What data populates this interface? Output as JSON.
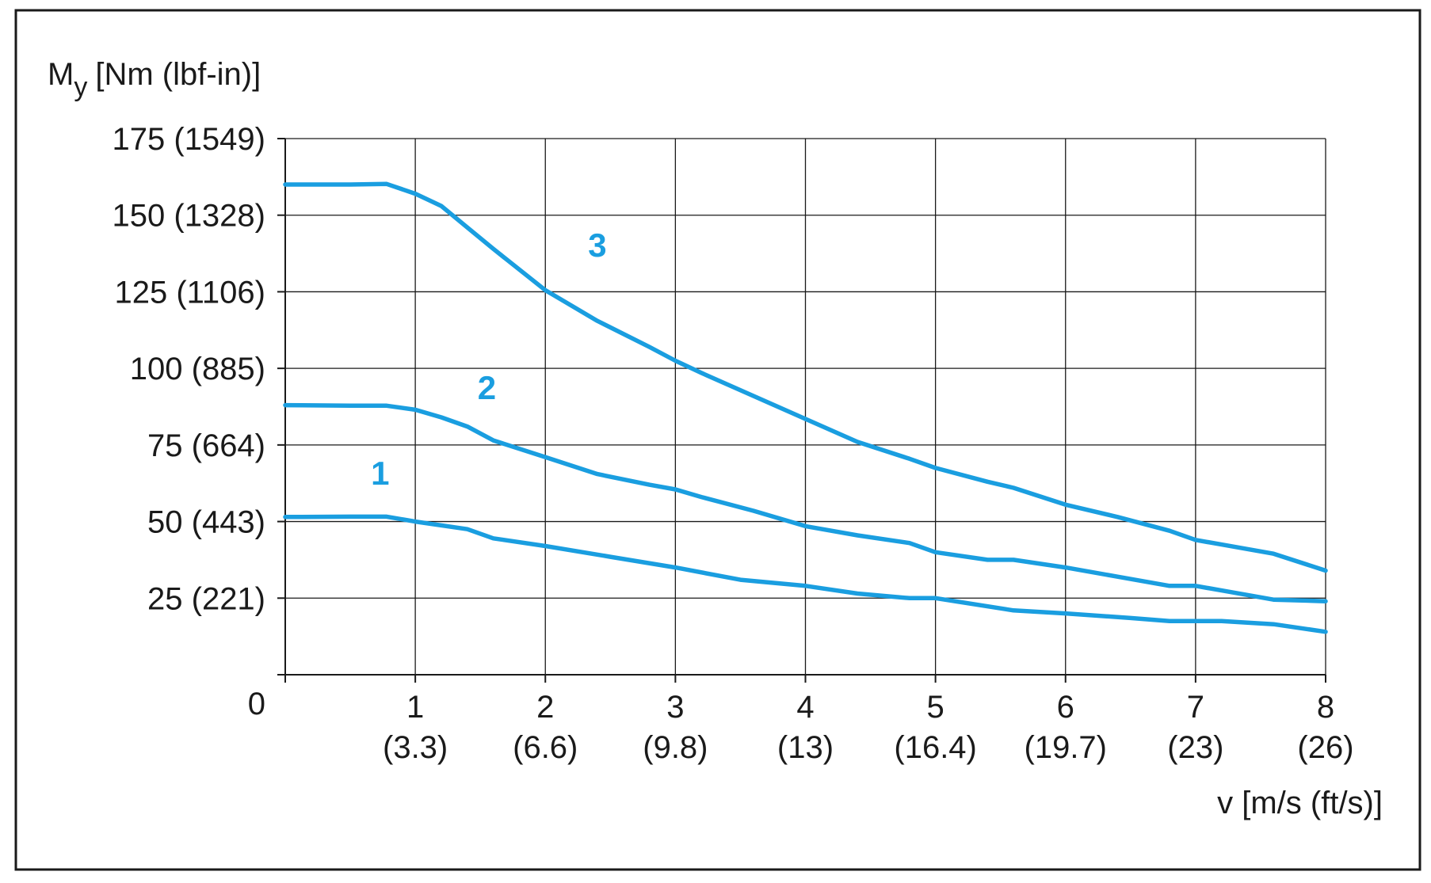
{
  "colors": {
    "series": "#1A9EE0",
    "frame": "#1A1A1A",
    "grid": "#1A1A1A"
  },
  "chart_data": {
    "type": "line",
    "title": "",
    "ylabel_main": "M",
    "ylabel_sub": "y",
    "ylabel_units": "[Nm (lbf-in)]",
    "xlabel": "v [m/s (ft/s)]",
    "xlim": [
      0,
      8
    ],
    "ylim": [
      0,
      175
    ],
    "grid": true,
    "origin_label": "0",
    "yticks": [
      {
        "value": 25,
        "label": "25 (221)"
      },
      {
        "value": 50,
        "label": "50 (443)"
      },
      {
        "value": 75,
        "label": "75 (664)"
      },
      {
        "value": 100,
        "label": "100 (885)"
      },
      {
        "value": 125,
        "label": "125 (1106)"
      },
      {
        "value": 150,
        "label": "150 (1328)"
      },
      {
        "value": 175,
        "label": "175 (1549)"
      }
    ],
    "xticks": [
      {
        "value": 1,
        "label": "1",
        "sublabel": "(3.3)"
      },
      {
        "value": 2,
        "label": "2",
        "sublabel": "(6.6)"
      },
      {
        "value": 3,
        "label": "3",
        "sublabel": "(9.8)"
      },
      {
        "value": 4,
        "label": "4",
        "sublabel": "(13)"
      },
      {
        "value": 5,
        "label": "5",
        "sublabel": "(16.4)"
      },
      {
        "value": 6,
        "label": "6",
        "sublabel": "(19.7)"
      },
      {
        "value": 7,
        "label": "7",
        "sublabel": "(23)"
      },
      {
        "value": 8,
        "label": "8",
        "sublabel": "(26)"
      }
    ],
    "series": [
      {
        "name": "1",
        "label_at": {
          "x": 0.73,
          "y": 62
        },
        "x": [
          0,
          0.5,
          0.78,
          1.0,
          1.4,
          1.6,
          2.0,
          2.5,
          3.0,
          3.5,
          4.0,
          4.4,
          4.8,
          5.0,
          5.6,
          6.0,
          6.5,
          6.8,
          7.2,
          7.6,
          8.0
        ],
        "y": [
          51.5,
          51.6,
          51.6,
          50.0,
          47.5,
          44.5,
          42.0,
          38.5,
          35.0,
          31.0,
          29.0,
          26.5,
          25.0,
          25.0,
          21.0,
          20.0,
          18.5,
          17.5,
          17.5,
          16.5,
          14.0
        ]
      },
      {
        "name": "2",
        "label_at": {
          "x": 1.55,
          "y": 90
        },
        "x": [
          0,
          0.5,
          0.78,
          1.0,
          1.2,
          1.4,
          1.6,
          2.0,
          2.4,
          2.8,
          3.0,
          3.2,
          3.6,
          4.0,
          4.4,
          4.8,
          5.0,
          5.4,
          5.6,
          6.0,
          6.4,
          6.8,
          7.0,
          7.2,
          7.6,
          8.0
        ],
        "y": [
          88.0,
          87.8,
          87.8,
          86.5,
          84.0,
          81.0,
          76.5,
          71.0,
          65.5,
          62.0,
          60.5,
          58.0,
          53.5,
          48.5,
          45.5,
          43.0,
          40.0,
          37.5,
          37.5,
          35.0,
          32.0,
          29.0,
          29.0,
          27.5,
          24.5,
          24.0
        ]
      },
      {
        "name": "3",
        "label_at": {
          "x": 2.4,
          "y": 136.5
        },
        "x": [
          0,
          0.5,
          0.78,
          1.0,
          1.2,
          1.4,
          1.6,
          2.0,
          2.4,
          2.8,
          3.0,
          3.2,
          3.6,
          4.0,
          4.4,
          4.8,
          5.0,
          5.4,
          5.6,
          6.0,
          6.4,
          6.8,
          7.0,
          7.2,
          7.6,
          8.0
        ],
        "y": [
          160.0,
          160.0,
          160.2,
          157.0,
          153.0,
          146.0,
          139.0,
          125.5,
          115.5,
          107.0,
          102.5,
          98.5,
          91.0,
          83.5,
          76.0,
          70.5,
          67.5,
          63.0,
          61.0,
          55.5,
          51.5,
          47.0,
          44.0,
          42.5,
          39.5,
          34.0
        ]
      }
    ]
  }
}
